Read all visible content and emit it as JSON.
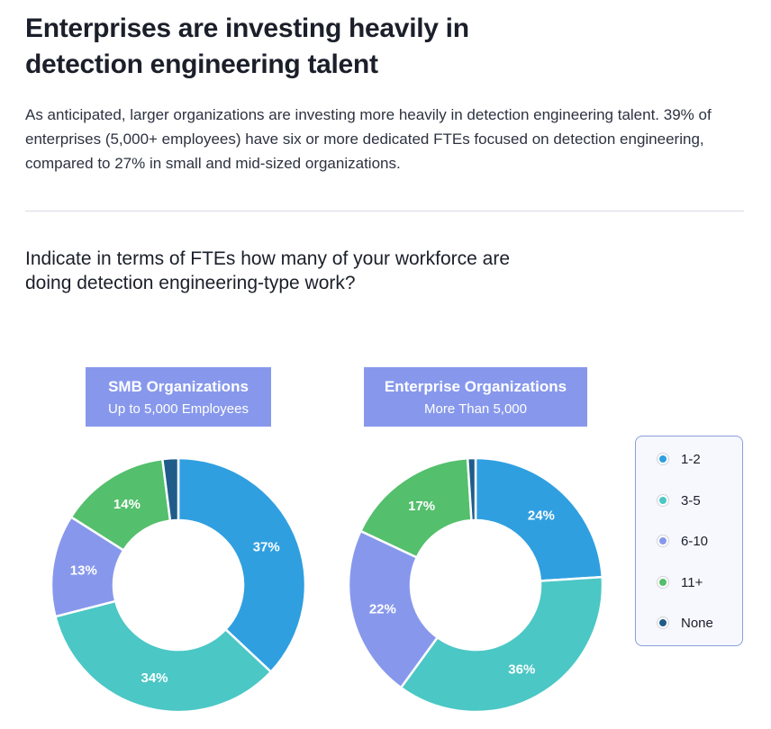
{
  "page": {
    "title": "Enterprises are investing heavily in detection engineering talent",
    "intro": "As anticipated, larger organizations are investing more heavily in detection engineering talent. 39% of enterprises (5,000+ employees) have six or more dedicated FTEs focused on detection engineering, compared to 27% in small and mid-sized organizations.",
    "question": "Indicate in terms of FTEs how many of your workforce are doing detection engineering-type work?"
  },
  "colors": {
    "1-2": "#2f9fe0",
    "3-5": "#4bc7c5",
    "6-10": "#8798ec",
    "11+": "#54bf6c",
    "None": "#1f5c8a",
    "header_box": "#8798ec"
  },
  "legend": [
    {
      "label": "1-2",
      "color": "#2f9fe0"
    },
    {
      "label": "3-5",
      "color": "#4bc7c5"
    },
    {
      "label": "6-10",
      "color": "#8798ec"
    },
    {
      "label": "11+",
      "color": "#54bf6c"
    },
    {
      "label": "None",
      "color": "#1f5c8a"
    }
  ],
  "chart_data": [
    {
      "type": "pie",
      "title": "SMB Organizations",
      "subtitle": "Up to 5,000 Employees",
      "categories": [
        "1-2",
        "3-5",
        "6-10",
        "11+",
        "None"
      ],
      "values": [
        37,
        34,
        13,
        14,
        2
      ],
      "data_labels": [
        "37%",
        "34%",
        "13%",
        "14%",
        ""
      ]
    },
    {
      "type": "pie",
      "title": "Enterprise Organizations",
      "subtitle": "More Than 5,000",
      "categories": [
        "1-2",
        "3-5",
        "6-10",
        "11+",
        "None"
      ],
      "values": [
        24,
        36,
        22,
        17,
        1
      ],
      "data_labels": [
        "24%",
        "36%",
        "22%",
        "17%",
        ""
      ]
    }
  ]
}
